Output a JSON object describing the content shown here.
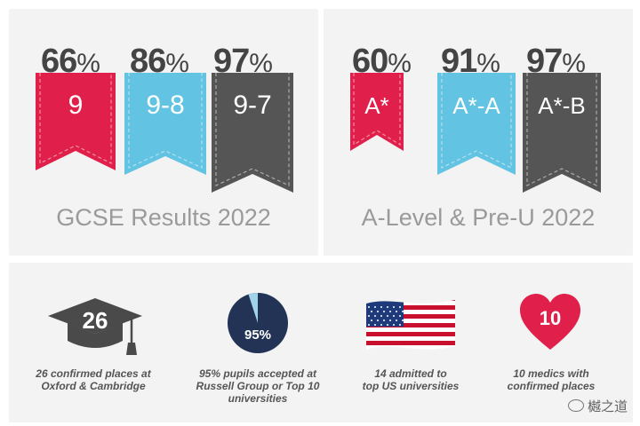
{
  "gcse": {
    "title": "GCSE Results 2022",
    "stats": [
      {
        "percent": "66",
        "sign": "%",
        "grade": "9",
        "color": "#e0204a"
      },
      {
        "percent": "86",
        "sign": "%",
        "grade": "9-8",
        "color": "#62c3e2"
      },
      {
        "percent": "97",
        "sign": "%",
        "grade": "9-7",
        "color": "#555555"
      }
    ]
  },
  "alevel": {
    "title": "A-Level & Pre-U 2022",
    "stats": [
      {
        "percent": "60",
        "sign": "%",
        "grade": "A*",
        "color": "#e0204a"
      },
      {
        "percent": "91",
        "sign": "%",
        "grade": "A*-A",
        "color": "#62c3e2"
      },
      {
        "percent": "97",
        "sign": "%",
        "grade": "A*-B",
        "color": "#555555"
      }
    ]
  },
  "highlights": [
    {
      "icon": "graduation-cap-icon",
      "value": "26",
      "caption_line1": "26 confirmed places at",
      "caption_line2": "Oxford & Cambridge",
      "caption_line3": ""
    },
    {
      "icon": "pie-chart-icon",
      "value": "95%",
      "fill_fraction": 0.95,
      "caption_line1": "95% pupils accepted at",
      "caption_line2": "Russell Group or Top 10",
      "caption_line3": "universities"
    },
    {
      "icon": "us-flag-icon",
      "value": "",
      "caption_line1": "14 admitted to",
      "caption_line2": "top US universities",
      "caption_line3": ""
    },
    {
      "icon": "heart-icon",
      "value": "10",
      "caption_line1": "10 medics with",
      "caption_line2": "confirmed places",
      "caption_line3": ""
    }
  ],
  "watermark": "樾之道"
}
